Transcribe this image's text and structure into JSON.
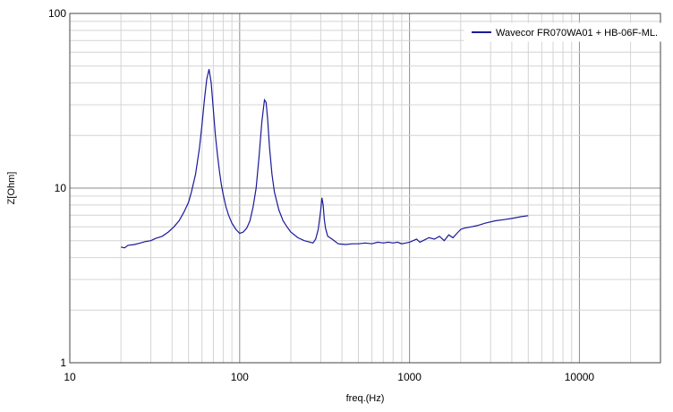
{
  "chart_data": {
    "type": "line",
    "title": "",
    "xlabel": "freq.(Hz)",
    "ylabel": "Z[Ohm]",
    "xscale": "log",
    "yscale": "log",
    "xlim": [
      10,
      30000
    ],
    "ylim": [
      1,
      100
    ],
    "x_ticks": [
      {
        "value": 10,
        "label": "10"
      },
      {
        "value": 100,
        "label": "100"
      },
      {
        "value": 1000,
        "label": "1000"
      },
      {
        "value": 10000,
        "label": "10000"
      }
    ],
    "y_ticks": [
      {
        "value": 1,
        "label": "1"
      },
      {
        "value": 10,
        "label": "10"
      },
      {
        "value": 100,
        "label": "100"
      }
    ],
    "grid": true,
    "legend": "top-right",
    "colors": {
      "series": "#1a1a99",
      "grid_major": "#8c8c8c",
      "grid_minor": "#d4d4d4",
      "frame": "#444444"
    },
    "series": [
      {
        "name": "Wavecor FR070WA01 + HB-06F-ML.",
        "x": [
          20,
          21,
          22,
          24,
          26,
          28,
          30,
          32,
          35,
          38,
          41,
          44,
          47,
          50,
          52,
          55,
          58,
          60,
          62,
          64,
          66,
          68,
          70,
          72,
          74,
          76,
          78,
          80,
          83,
          86,
          90,
          95,
          100,
          105,
          110,
          115,
          120,
          125,
          130,
          135,
          140,
          143,
          146,
          150,
          155,
          160,
          170,
          180,
          190,
          200,
          220,
          240,
          260,
          270,
          280,
          290,
          300,
          305,
          310,
          315,
          320,
          330,
          350,
          380,
          420,
          460,
          500,
          550,
          600,
          650,
          700,
          750,
          800,
          850,
          900,
          950,
          1000,
          1050,
          1100,
          1150,
          1200,
          1300,
          1400,
          1500,
          1600,
          1700,
          1800,
          1900,
          2000,
          2100,
          2300,
          2500,
          2800,
          3200,
          3600,
          4000,
          4500,
          5000
        ],
        "values": [
          4.6,
          4.55,
          4.7,
          4.75,
          4.85,
          4.95,
          5.0,
          5.15,
          5.3,
          5.6,
          6.0,
          6.5,
          7.3,
          8.3,
          9.5,
          12.0,
          17.0,
          23.0,
          32.0,
          42.0,
          48.0,
          40.0,
          28.0,
          20.0,
          15.5,
          12.5,
          10.5,
          9.2,
          7.8,
          7.0,
          6.3,
          5.8,
          5.5,
          5.6,
          5.9,
          6.5,
          7.8,
          10.0,
          15.0,
          24.0,
          32.0,
          31.0,
          25.0,
          17.0,
          12.0,
          9.5,
          7.5,
          6.5,
          6.0,
          5.6,
          5.2,
          5.0,
          4.9,
          4.85,
          5.1,
          5.8,
          7.5,
          8.8,
          8.0,
          6.6,
          5.9,
          5.3,
          5.1,
          4.8,
          4.75,
          4.8,
          4.8,
          4.85,
          4.8,
          4.9,
          4.85,
          4.9,
          4.85,
          4.9,
          4.8,
          4.85,
          4.9,
          5.0,
          5.1,
          4.9,
          5.0,
          5.2,
          5.1,
          5.3,
          5.0,
          5.4,
          5.2,
          5.5,
          5.8,
          5.9,
          6.0,
          6.1,
          6.3,
          6.5,
          6.6,
          6.7,
          6.85,
          6.95
        ]
      }
    ]
  }
}
